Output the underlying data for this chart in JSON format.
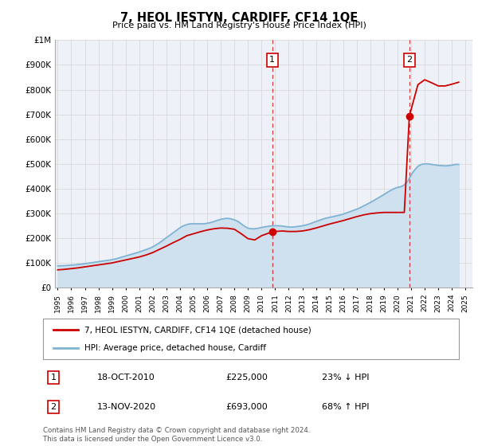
{
  "title": "7, HEOL IESTYN, CARDIFF, CF14 1QE",
  "subtitle": "Price paid vs. HM Land Registry's House Price Index (HPI)",
  "background_color": "#ffffff",
  "plot_bg_color": "#eef2f8",
  "grid_color": "#d8d8d8",
  "ylim": [
    0,
    1000000
  ],
  "yticks": [
    0,
    100000,
    200000,
    300000,
    400000,
    500000,
    600000,
    700000,
    800000,
    900000,
    1000000
  ],
  "ytick_labels": [
    "£0",
    "£100K",
    "£200K",
    "£300K",
    "£400K",
    "£500K",
    "£600K",
    "£700K",
    "£800K",
    "£900K",
    "£1M"
  ],
  "xlim_start": 1994.8,
  "xlim_end": 2025.5,
  "sale_color": "#cc0000",
  "hpi_color": "#7fb3d3",
  "hpi_fill_color": "#cfe0ef",
  "marker1_x": 2010.79,
  "marker1_y": 225000,
  "marker2_x": 2020.87,
  "marker2_y": 693000,
  "vline1_x": 2010.79,
  "vline2_x": 2020.87,
  "legend_sale_label": "7, HEOL IESTYN, CARDIFF, CF14 1QE (detached house)",
  "legend_hpi_label": "HPI: Average price, detached house, Cardiff",
  "table_row1": [
    "1",
    "18-OCT-2010",
    "£225,000",
    "23% ↓ HPI"
  ],
  "table_row2": [
    "2",
    "13-NOV-2020",
    "£693,000",
    "68% ↑ HPI"
  ],
  "footer": "Contains HM Land Registry data © Crown copyright and database right 2024.\nThis data is licensed under the Open Government Licence v3.0.",
  "hpi_years": [
    1995.0,
    1995.25,
    1995.5,
    1995.75,
    1996.0,
    1996.25,
    1996.5,
    1996.75,
    1997.0,
    1997.25,
    1997.5,
    1997.75,
    1998.0,
    1998.25,
    1998.5,
    1998.75,
    1999.0,
    1999.25,
    1999.5,
    1999.75,
    2000.0,
    2000.25,
    2000.5,
    2000.75,
    2001.0,
    2001.25,
    2001.5,
    2001.75,
    2002.0,
    2002.25,
    2002.5,
    2002.75,
    2003.0,
    2003.25,
    2003.5,
    2003.75,
    2004.0,
    2004.25,
    2004.5,
    2004.75,
    2005.0,
    2005.25,
    2005.5,
    2005.75,
    2006.0,
    2006.25,
    2006.5,
    2006.75,
    2007.0,
    2007.25,
    2007.5,
    2007.75,
    2008.0,
    2008.25,
    2008.5,
    2008.75,
    2009.0,
    2009.25,
    2009.5,
    2009.75,
    2010.0,
    2010.25,
    2010.5,
    2010.75,
    2011.0,
    2011.25,
    2011.5,
    2011.75,
    2012.0,
    2012.25,
    2012.5,
    2012.75,
    2013.0,
    2013.25,
    2013.5,
    2013.75,
    2014.0,
    2014.25,
    2014.5,
    2014.75,
    2015.0,
    2015.25,
    2015.5,
    2015.75,
    2016.0,
    2016.25,
    2016.5,
    2016.75,
    2017.0,
    2017.25,
    2017.5,
    2017.75,
    2018.0,
    2018.25,
    2018.5,
    2018.75,
    2019.0,
    2019.25,
    2019.5,
    2019.75,
    2020.0,
    2020.25,
    2020.5,
    2020.75,
    2021.0,
    2021.25,
    2021.5,
    2021.75,
    2022.0,
    2022.25,
    2022.5,
    2022.75,
    2023.0,
    2023.25,
    2023.5,
    2023.75,
    2024.0,
    2024.25,
    2024.5
  ],
  "hpi_values": [
    88000,
    88500,
    89000,
    90000,
    91000,
    92000,
    93500,
    95000,
    97000,
    99000,
    101000,
    103000,
    105000,
    107000,
    109000,
    111000,
    113000,
    116000,
    120000,
    124000,
    128000,
    132000,
    136000,
    140000,
    144000,
    149000,
    154000,
    159000,
    165000,
    173000,
    182000,
    192000,
    202000,
    212000,
    222000,
    232000,
    242000,
    250000,
    255000,
    258000,
    258000,
    258000,
    258000,
    258000,
    260000,
    263000,
    267000,
    272000,
    276000,
    279000,
    280000,
    278000,
    274000,
    268000,
    258000,
    248000,
    240000,
    238000,
    238000,
    240000,
    243000,
    246000,
    248000,
    250000,
    250000,
    250000,
    249000,
    247000,
    245000,
    245000,
    246000,
    248000,
    250000,
    253000,
    257000,
    262000,
    267000,
    272000,
    277000,
    281000,
    284000,
    287000,
    290000,
    293000,
    297000,
    302000,
    307000,
    312000,
    317000,
    323000,
    330000,
    337000,
    344000,
    352000,
    360000,
    368000,
    376000,
    385000,
    393000,
    400000,
    405000,
    408000,
    415000,
    430000,
    455000,
    475000,
    490000,
    498000,
    500000,
    500000,
    498000,
    496000,
    494000,
    493000,
    492000,
    493000,
    495000,
    498000,
    498000
  ],
  "sale_years": [
    1995.0,
    1995.25,
    1995.5,
    1995.75,
    1996.0,
    1996.5,
    1997.0,
    1997.5,
    1998.0,
    1998.5,
    1999.0,
    1999.5,
    2000.0,
    2000.5,
    2001.0,
    2001.5,
    2002.0,
    2002.5,
    2003.0,
    2003.5,
    2004.0,
    2004.5,
    2005.0,
    2005.5,
    2006.0,
    2006.5,
    2007.0,
    2007.5,
    2008.0,
    2008.5,
    2009.0,
    2009.5,
    2010.0,
    2010.5,
    2010.79,
    2011.0,
    2011.5,
    2012.0,
    2012.5,
    2013.0,
    2013.5,
    2014.0,
    2014.5,
    2015.0,
    2015.5,
    2016.0,
    2016.5,
    2017.0,
    2017.5,
    2018.0,
    2018.5,
    2019.0,
    2019.5,
    2020.0,
    2020.5,
    2020.87,
    2021.5,
    2022.0,
    2022.5,
    2023.0,
    2023.5,
    2024.0,
    2024.5
  ],
  "sale_values": [
    72000,
    73000,
    74000,
    75500,
    77000,
    80000,
    84000,
    88000,
    92000,
    96000,
    100000,
    106000,
    112000,
    118000,
    124000,
    132000,
    142000,
    155000,
    168000,
    182000,
    195000,
    210000,
    218000,
    226000,
    233000,
    238000,
    241000,
    240000,
    236000,
    218000,
    198000,
    193000,
    210000,
    220000,
    225000,
    227000,
    229000,
    227000,
    227000,
    229000,
    234000,
    241000,
    249000,
    257000,
    264000,
    271000,
    279000,
    287000,
    294000,
    299000,
    302000,
    304000,
    304000,
    304000,
    304000,
    693000,
    820000,
    840000,
    828000,
    815000,
    815000,
    822000,
    830000
  ]
}
